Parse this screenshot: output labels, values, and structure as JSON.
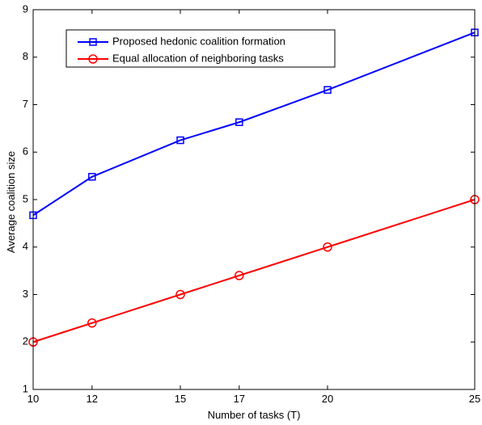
{
  "chart_data": {
    "type": "line",
    "xlabel": "Number of tasks (T)",
    "ylabel": "Average coalition size",
    "xlim": [
      10,
      25
    ],
    "ylim": [
      1,
      9
    ],
    "xticks": [
      10,
      12,
      15,
      17,
      20,
      25
    ],
    "yticks": [
      1,
      2,
      3,
      4,
      5,
      6,
      7,
      8,
      9
    ],
    "grid": false,
    "legend_position": "top-left",
    "x": [
      10,
      12,
      15,
      17,
      20,
      25
    ],
    "series": [
      {
        "name": "Proposed hedonic coalition formation",
        "values": [
          4.67,
          5.48,
          6.25,
          6.63,
          7.31,
          8.52
        ],
        "color": "#0000ff",
        "marker": "square"
      },
      {
        "name": "Equal allocation of neighboring tasks",
        "values": [
          2.0,
          2.4,
          3.0,
          3.4,
          4.0,
          5.0
        ],
        "color": "#ff0000",
        "marker": "circle"
      }
    ]
  }
}
